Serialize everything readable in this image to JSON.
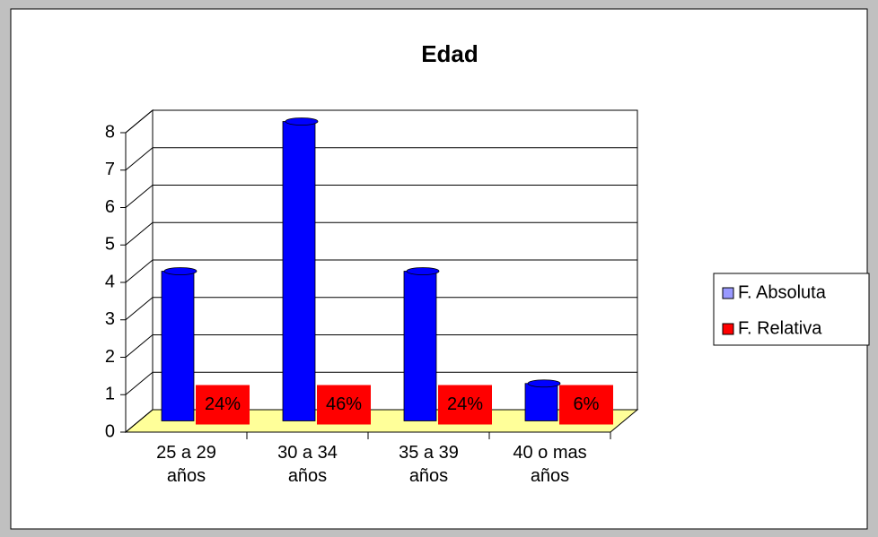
{
  "chart_data": {
    "type": "bar3d",
    "title": "Edad",
    "categories": [
      "25 a 29 años",
      "30 a 34 años",
      "35 a 39 años",
      "40 o mas años"
    ],
    "series": [
      {
        "name": "F. Absoluta",
        "color": "#0000ff",
        "values": [
          4,
          8,
          4,
          1
        ]
      },
      {
        "name": "F. Relativa",
        "color": "#ff0000",
        "values": [
          0.24,
          0.46,
          0.24,
          0.06
        ],
        "value_labels": [
          "24%",
          "46%",
          "24%",
          "6%"
        ]
      }
    ],
    "ylim": [
      0,
      8
    ],
    "yticks": [
      0,
      1,
      2,
      3,
      4,
      5,
      6,
      7,
      8
    ],
    "grid": true,
    "legend": "right"
  }
}
